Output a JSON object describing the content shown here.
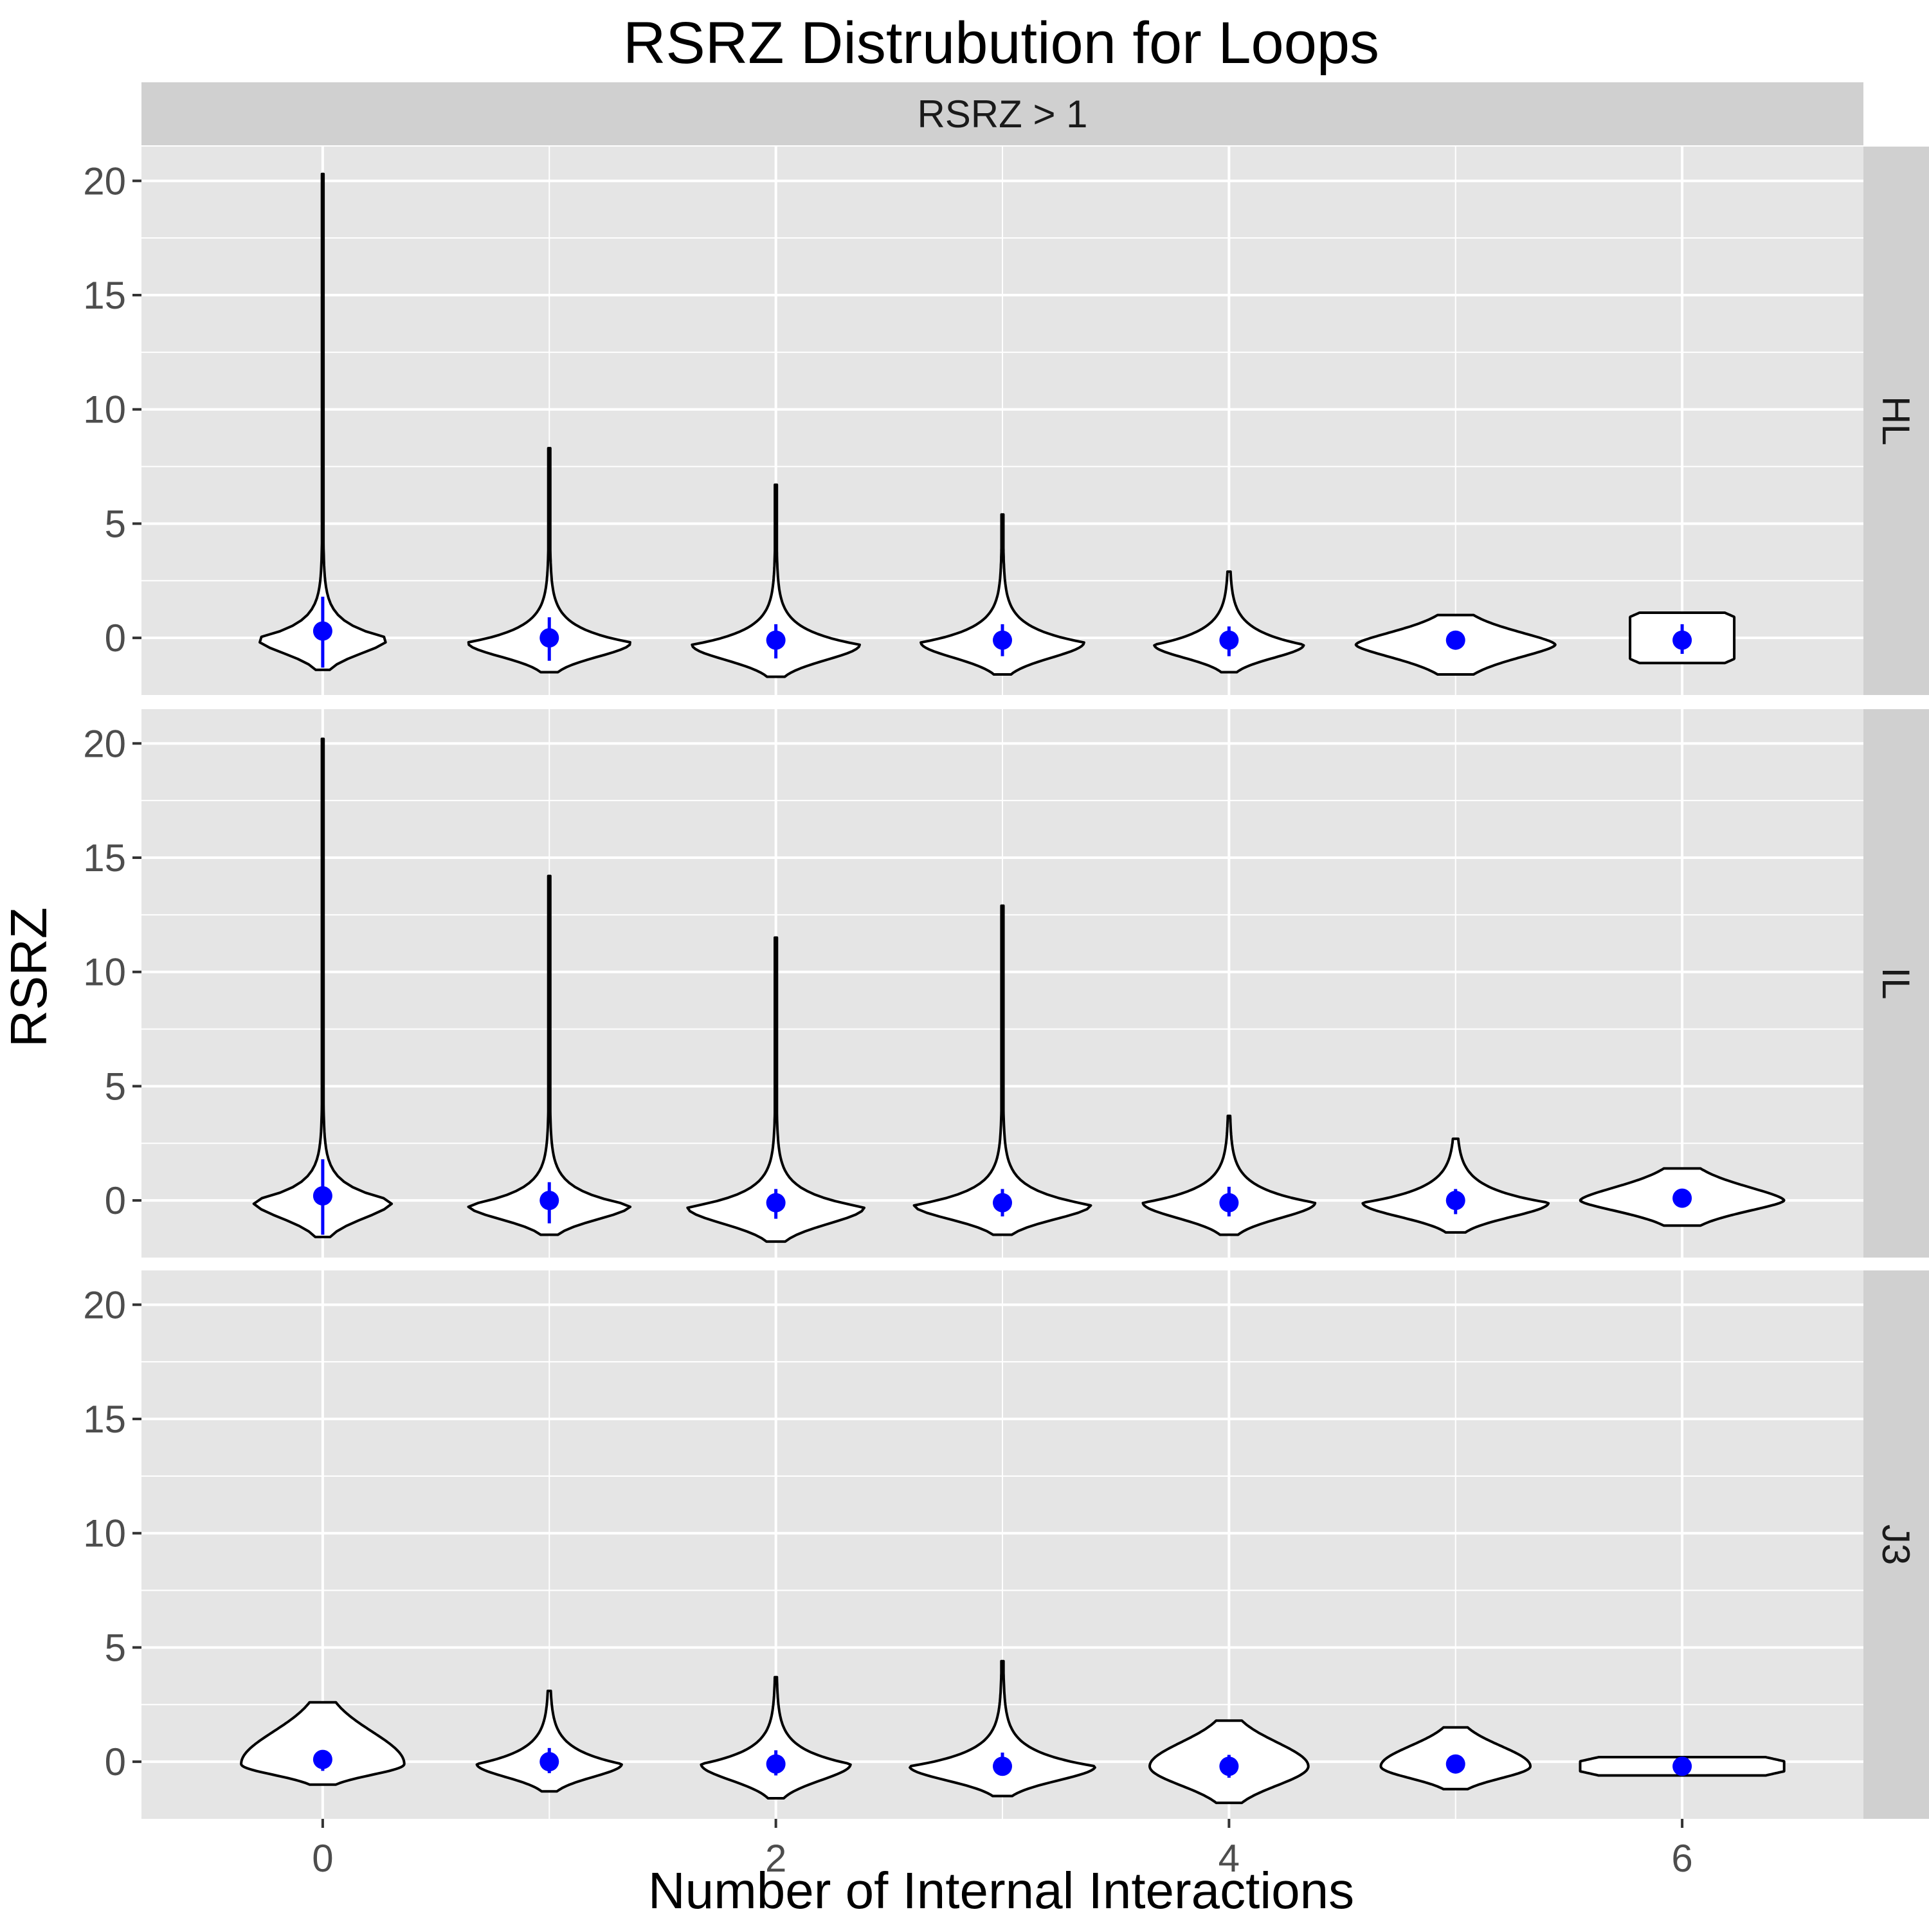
{
  "chart_data": {
    "type": "violin",
    "title": "RSRZ Distrubution for Loops",
    "xlabel": "Number of Internal Interactions",
    "ylabel": "RSRZ",
    "column_strip": "RSRZ > 1",
    "x_ticks": [
      0,
      2,
      4,
      6
    ],
    "y_ticks": [
      0,
      5,
      10,
      15,
      20
    ],
    "xlim": [
      -0.8,
      6.8
    ],
    "ylim": [
      -2.5,
      21.5
    ],
    "grid": true,
    "colors": {
      "panel_bg": "#e5e5e5",
      "strip_bg": "#d0d0d0",
      "grid": "#ffffff",
      "violin_fill": "#ffffff",
      "violin_stroke": "#000000",
      "point": "#0000ff"
    },
    "panels": [
      {
        "label": "HL",
        "violins": [
          {
            "x": 0,
            "min": -1.4,
            "max": 20.3,
            "mean": 0.3,
            "ci_low": -1.3,
            "ci_high": 1.8,
            "mode": 0.0,
            "half_width": 0.29,
            "shape": "skew"
          },
          {
            "x": 1,
            "min": -1.5,
            "max": 8.3,
            "mean": 0.0,
            "ci_low": -1.0,
            "ci_high": 0.9,
            "mode": -0.2,
            "half_width": 0.36,
            "shape": "skew"
          },
          {
            "x": 2,
            "min": -1.7,
            "max": 6.7,
            "mean": -0.1,
            "ci_low": -0.9,
            "ci_high": 0.6,
            "mode": -0.3,
            "half_width": 0.37,
            "shape": "skew"
          },
          {
            "x": 3,
            "min": -1.6,
            "max": 5.4,
            "mean": -0.1,
            "ci_low": -0.8,
            "ci_high": 0.6,
            "mode": -0.2,
            "half_width": 0.36,
            "shape": "skew"
          },
          {
            "x": 4,
            "min": -1.5,
            "max": 2.9,
            "mean": -0.1,
            "ci_low": -0.8,
            "ci_high": 0.5,
            "mode": -0.3,
            "half_width": 0.33,
            "shape": "skew"
          },
          {
            "x": 5,
            "min": -1.6,
            "max": 1.0,
            "mean": -0.1,
            "ci_low": -0.4,
            "ci_high": 0.2,
            "mode": -0.3,
            "half_width": 0.44,
            "shape": "flat"
          },
          {
            "x": 6,
            "min": -1.1,
            "max": 1.1,
            "mean": -0.1,
            "ci_low": -0.7,
            "ci_high": 0.6,
            "mode": 0.0,
            "half_width": 0.23,
            "shape": "box"
          }
        ]
      },
      {
        "label": "IL",
        "violins": [
          {
            "x": 0,
            "min": -1.6,
            "max": 20.2,
            "mean": 0.2,
            "ci_low": -1.5,
            "ci_high": 1.8,
            "mode": 0.0,
            "half_width": 0.31,
            "shape": "skew"
          },
          {
            "x": 1,
            "min": -1.5,
            "max": 14.2,
            "mean": 0.0,
            "ci_low": -1.0,
            "ci_high": 0.8,
            "mode": -0.2,
            "half_width": 0.36,
            "shape": "skew"
          },
          {
            "x": 2,
            "min": -1.8,
            "max": 11.5,
            "mean": -0.1,
            "ci_low": -0.8,
            "ci_high": 0.5,
            "mode": -0.3,
            "half_width": 0.39,
            "shape": "skew"
          },
          {
            "x": 3,
            "min": -1.5,
            "max": 12.9,
            "mean": -0.1,
            "ci_low": -0.7,
            "ci_high": 0.5,
            "mode": -0.2,
            "half_width": 0.39,
            "shape": "skew"
          },
          {
            "x": 4,
            "min": -1.5,
            "max": 3.7,
            "mean": -0.1,
            "ci_low": -0.7,
            "ci_high": 0.6,
            "mode": -0.1,
            "half_width": 0.38,
            "shape": "skew"
          },
          {
            "x": 5,
            "min": -1.4,
            "max": 2.7,
            "mean": 0.0,
            "ci_low": -0.6,
            "ci_high": 0.5,
            "mode": -0.1,
            "half_width": 0.41,
            "shape": "skew"
          },
          {
            "x": 6,
            "min": -1.1,
            "max": 1.4,
            "mean": 0.1,
            "ci_low": -0.2,
            "ci_high": 0.4,
            "mode": 0.0,
            "half_width": 0.45,
            "shape": "flat"
          }
        ]
      },
      {
        "label": "J3",
        "violins": [
          {
            "x": 0,
            "min": -1.0,
            "max": 2.6,
            "mean": 0.1,
            "ci_low": -0.4,
            "ci_high": 0.5,
            "mode": -0.1,
            "half_width": 0.36,
            "shape": "rounded"
          },
          {
            "x": 1,
            "min": -1.3,
            "max": 3.1,
            "mean": 0.0,
            "ci_low": -0.5,
            "ci_high": 0.6,
            "mode": -0.1,
            "half_width": 0.32,
            "shape": "skew"
          },
          {
            "x": 2,
            "min": -1.6,
            "max": 3.7,
            "mean": -0.1,
            "ci_low": -0.6,
            "ci_high": 0.5,
            "mode": -0.1,
            "half_width": 0.33,
            "shape": "skew"
          },
          {
            "x": 3,
            "min": -1.5,
            "max": 4.4,
            "mean": -0.2,
            "ci_low": -0.6,
            "ci_high": 0.4,
            "mode": -0.2,
            "half_width": 0.41,
            "shape": "skew"
          },
          {
            "x": 4,
            "min": -1.8,
            "max": 1.8,
            "mean": -0.2,
            "ci_low": -0.7,
            "ci_high": 0.3,
            "mode": -0.2,
            "half_width": 0.35,
            "shape": "rounded"
          },
          {
            "x": 5,
            "min": -1.2,
            "max": 1.5,
            "mean": -0.1,
            "ci_low": -0.5,
            "ci_high": 0.3,
            "mode": -0.2,
            "half_width": 0.33,
            "shape": "rounded"
          },
          {
            "x": 6,
            "min": -0.6,
            "max": 0.2,
            "mean": -0.2,
            "ci_low": -0.2,
            "ci_high": -0.2,
            "mode": -0.2,
            "half_width": 0.45,
            "shape": "box"
          }
        ]
      }
    ]
  }
}
